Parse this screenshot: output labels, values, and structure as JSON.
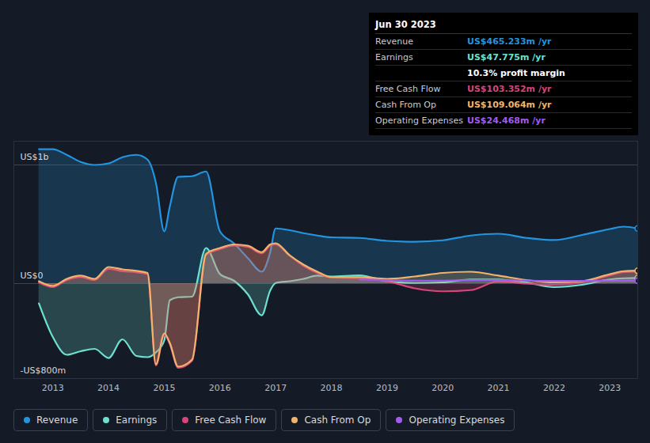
{
  "chart_data": {
    "type": "line",
    "x": [
      2012.75,
      2013.0,
      2013.25,
      2013.5,
      2013.75,
      2014.0,
      2014.25,
      2014.5,
      2014.7,
      2014.85,
      2015.0,
      2015.1,
      2015.25,
      2015.5,
      2015.75,
      2016.0,
      2016.25,
      2016.5,
      2016.75,
      2016.9,
      2017.0,
      2017.25,
      2017.5,
      2017.75,
      2018.0,
      2018.5,
      2019.0,
      2019.5,
      2020.0,
      2020.5,
      2021.0,
      2021.5,
      2022.0,
      2022.5,
      2023.0,
      2023.25,
      2023.5
    ],
    "xlim": [
      2012.3,
      2023.5
    ],
    "xticks": [
      2013,
      2014,
      2015,
      2016,
      2017,
      2018,
      2019,
      2020,
      2021,
      2022,
      2023
    ],
    "ylim": [
      -800,
      1200
    ],
    "yticks": [
      {
        "value": 1000,
        "label": "US$1b"
      },
      {
        "value": 0,
        "label": "US$0"
      },
      {
        "value": -800,
        "label": "-US$800m"
      }
    ],
    "grid": true,
    "legend": "bottom",
    "series": [
      {
        "name": "Revenue",
        "color": "#2394df",
        "type": "area",
        "values": [
          1133,
          1133,
          1085,
          1025,
          1000,
          1013,
          1065,
          1085,
          1045,
          850,
          440,
          650,
          900,
          905,
          945,
          440,
          340,
          215,
          100,
          260,
          465,
          450,
          425,
          405,
          390,
          385,
          360,
          353,
          365,
          405,
          420,
          385,
          367,
          410,
          460,
          480,
          465
        ]
      },
      {
        "name": "Earnings",
        "color": "#6ee0d0",
        "type": "area",
        "values": [
          -167,
          -450,
          -600,
          -570,
          -550,
          -627,
          -470,
          -610,
          -620,
          -580,
          -480,
          -140,
          -115,
          -110,
          300,
          80,
          25,
          -90,
          -267,
          -60,
          5,
          20,
          40,
          67,
          60,
          70,
          20,
          5,
          10,
          35,
          35,
          10,
          -30,
          -10,
          35,
          45,
          48
        ]
      },
      {
        "name": "Free Cash Flow",
        "color": "#d8457a",
        "type": "area",
        "values": [
          10,
          -30,
          30,
          55,
          30,
          125,
          105,
          95,
          80,
          -690,
          -430,
          -510,
          -710,
          -650,
          240,
          290,
          320,
          310,
          255,
          320,
          330,
          235,
          150,
          90,
          50,
          45,
          20,
          -40,
          -65,
          -55,
          20,
          0,
          -10,
          10,
          70,
          98,
          103
        ]
      },
      {
        "name": "Cash From Op",
        "color": "#f2b36b",
        "type": "area",
        "values": [
          20,
          -20,
          40,
          67,
          40,
          140,
          120,
          107,
          90,
          -680,
          -420,
          -500,
          -700,
          -640,
          250,
          300,
          330,
          320,
          265,
          330,
          340,
          240,
          160,
          100,
          55,
          55,
          40,
          60,
          90,
          100,
          67,
          30,
          10,
          20,
          80,
          105,
          109
        ]
      },
      {
        "name": "Operating Expenses",
        "color": "#a25cf0",
        "type": "line",
        "values": [
          null,
          null,
          null,
          null,
          null,
          null,
          null,
          null,
          null,
          null,
          null,
          null,
          null,
          null,
          null,
          null,
          null,
          null,
          null,
          null,
          null,
          null,
          null,
          null,
          null,
          35,
          30,
          25,
          25,
          30,
          30,
          25,
          22,
          22,
          24,
          24,
          24
        ]
      }
    ],
    "tooltip": {
      "title": "Jun 30 2023",
      "rows": [
        {
          "label": "Revenue",
          "value": "US$465.233m /yr",
          "color": "#2394df"
        },
        {
          "label": "Earnings",
          "value": "US$47.775m /yr",
          "color": "#6ee0d0"
        },
        {
          "value": "10.3% profit margin",
          "color": "#ffffff"
        },
        {
          "label": "Free Cash Flow",
          "value": "US$103.352m /yr",
          "color": "#d8457a"
        },
        {
          "label": "Cash From Op",
          "value": "US$109.064m /yr",
          "color": "#f2b36b"
        },
        {
          "label": "Operating Expenses",
          "value": "US$24.468m /yr",
          "color": "#a25cf0"
        }
      ]
    }
  }
}
